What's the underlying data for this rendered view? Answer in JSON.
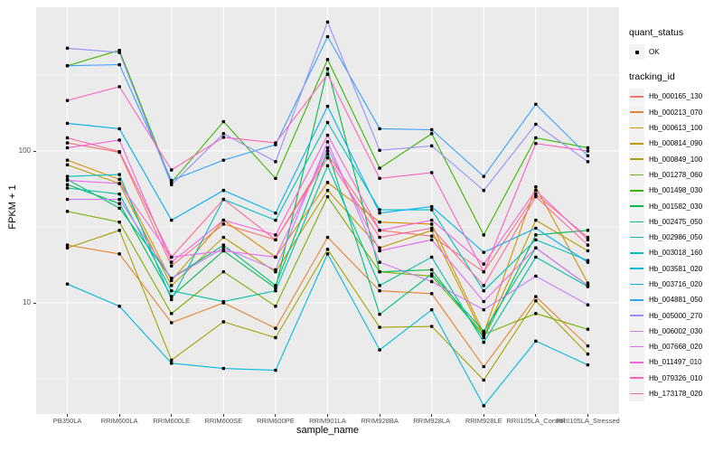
{
  "figure": {
    "background": "#FFFFFF",
    "panel_background": "#EBEBEB",
    "gridline_color": "#FFFFFF",
    "point_color": "#000000",
    "axis_text_color": "#4D4D4D",
    "axis_title_color": "#000000"
  },
  "axes": {
    "y_title": "FPKM + 1",
    "x_title": "sample_name",
    "y_tick_labels": [
      "100",
      "10"
    ],
    "y_tick_values": [
      100,
      10
    ]
  },
  "legend": {
    "quant_status_title": "quant_status",
    "quant_status_value": "OK",
    "quant_status_marker": "black-point",
    "tracking_id_title": "tracking_id"
  },
  "chart_data": {
    "type": "line",
    "title": "",
    "xlabel": "sample_name",
    "ylabel": "FPKM + 1",
    "y_scale": "log10",
    "grid": true,
    "legend_position": "right",
    "y_major_gridlines": [
      10,
      100
    ],
    "y_minor_gridlines": [
      3.162,
      31.62,
      316.2
    ],
    "ylim_approx": [
      1.85,
      880
    ],
    "point_marker": "black-square",
    "categories": [
      "PB350LA",
      "RRIM600LA",
      "RRIM600LE",
      "RRIM600SE",
      "RRIM600PE",
      "RRIM901LA",
      "RRIM928BA",
      "RRIM928LA",
      "RRIM928LE",
      "RRII105LA_Control",
      "RRII105LA_Stressed"
    ],
    "series": [
      {
        "name": "Hb_000165_130",
        "color": "#F8766D",
        "values": [
          113,
          98,
          17.5,
          33,
          26,
          95,
          30,
          27.5,
          16,
          52,
          27
        ]
      },
      {
        "name": "Hb_000213_070",
        "color": "#EA8331",
        "values": [
          24,
          21,
          7.4,
          10,
          6.8,
          27,
          12,
          11.5,
          3.8,
          11,
          5.2
        ]
      },
      {
        "name": "Hb_000613_100",
        "color": "#D89000",
        "values": [
          87,
          65,
          14,
          35,
          20,
          62,
          34,
          33,
          6.3,
          58,
          13.5
        ]
      },
      {
        "name": "Hb_000814_090",
        "color": "#C09B00",
        "values": [
          81,
          61,
          13,
          27,
          16,
          55,
          23,
          30,
          6,
          35,
          22
        ]
      },
      {
        "name": "Hb_000849_100",
        "color": "#A3A500",
        "values": [
          23,
          30,
          4.2,
          7.5,
          5.9,
          22.5,
          6.9,
          7,
          3.1,
          10.3,
          4.6
        ]
      },
      {
        "name": "Hb_001278_060",
        "color": "#7CAE00",
        "values": [
          40,
          34,
          8.5,
          16,
          9.5,
          50,
          16,
          15,
          6.2,
          8.5,
          6.7
        ]
      },
      {
        "name": "Hb_001498_030",
        "color": "#39B600",
        "values": [
          364,
          460,
          62,
          156,
          66,
          400,
          77,
          130,
          28,
          122,
          105
        ]
      },
      {
        "name": "Hb_001582_030",
        "color": "#00BB4E",
        "values": [
          60,
          45,
          11,
          22,
          12.5,
          348,
          16,
          16.5,
          5.9,
          28,
          30
        ]
      },
      {
        "name": "Hb_002475_050",
        "color": "#00BF7D",
        "values": [
          65,
          42,
          14.5,
          24,
          13,
          100,
          8.4,
          15.5,
          6.5,
          23,
          13
        ]
      },
      {
        "name": "Hb_002986_050",
        "color": "#00C1A3",
        "values": [
          57,
          52,
          12,
          10.2,
          12,
          80,
          13,
          20,
          5.5,
          20,
          12.8
        ]
      },
      {
        "name": "Hb_003018_160",
        "color": "#00BFC4",
        "values": [
          68,
          70,
          10.5,
          48,
          35,
          154,
          41,
          41,
          12,
          26,
          19
        ]
      },
      {
        "name": "Hb_003581_020",
        "color": "#00BAE0",
        "values": [
          13.3,
          9.5,
          4,
          3.7,
          3.6,
          21,
          4.9,
          9,
          2.1,
          5.6,
          3.9
        ]
      },
      {
        "name": "Hb_003716_020",
        "color": "#00B0F6",
        "values": [
          152,
          140,
          35,
          55,
          39,
          197,
          39,
          43,
          21.5,
          31,
          18.5
        ]
      },
      {
        "name": "Hb_004881_050",
        "color": "#35A2FF",
        "values": [
          364,
          370,
          64,
          87,
          110,
          566,
          140,
          138,
          68,
          203,
          93
        ]
      },
      {
        "name": "Hb_005000_270",
        "color": "#9590FF",
        "values": [
          475,
          445,
          60,
          130,
          85,
          707,
          101,
          108,
          55,
          150,
          85
        ]
      },
      {
        "name": "Hb_006002_030",
        "color": "#C77CFF",
        "values": [
          48,
          48,
          14.5,
          23,
          16.5,
          115,
          18.5,
          13.8,
          9,
          15,
          9.7
        ]
      },
      {
        "name": "Hb_007668_020",
        "color": "#E76BF3",
        "values": [
          64,
          61,
          20,
          22,
          20,
          105,
          22,
          26,
          10.2,
          23,
          13
        ]
      },
      {
        "name": "Hb_011497_010",
        "color": "#FA62DB",
        "values": [
          105,
          118,
          18.5,
          35,
          28,
          127,
          30,
          35,
          18,
          55,
          26
        ]
      },
      {
        "name": "Hb_079326_010",
        "color": "#FF62BC",
        "values": [
          215,
          265,
          75,
          123,
          113,
          320,
          66,
          72,
          16,
          112,
          100
        ]
      },
      {
        "name": "Hb_173178_020",
        "color": "#FF6A98",
        "values": [
          122,
          99,
          20,
          48,
          26,
          90,
          27,
          31,
          13,
          50,
          24
        ]
      }
    ]
  }
}
